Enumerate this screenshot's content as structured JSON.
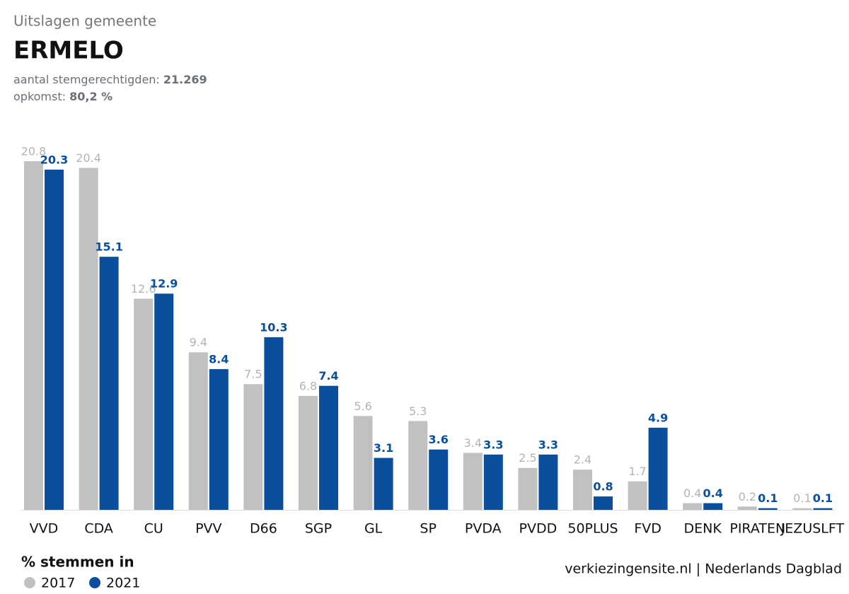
{
  "chart_data": {
    "type": "bar",
    "subtitle": "Uitslagen gemeente",
    "title": "ERMELO",
    "info": [
      {
        "label": "aantal stemgerechtigden:",
        "value": "21.269"
      },
      {
        "label": "opkomst:",
        "value": "80,2 %"
      }
    ],
    "categories": [
      "VVD",
      "CDA",
      "CU",
      "PVV",
      "D66",
      "SGP",
      "GL",
      "SP",
      "PVDA",
      "PVDD",
      "50PLUS",
      "FVD",
      "DENK",
      "PIRATEN",
      "JEZUSLFT"
    ],
    "series": [
      {
        "name": "2017",
        "color": "#c1c1c1",
        "values": [
          20.8,
          20.4,
          12.6,
          9.4,
          7.5,
          6.8,
          5.6,
          5.3,
          3.4,
          2.5,
          2.4,
          1.7,
          0.4,
          0.2,
          0.1
        ]
      },
      {
        "name": "2021",
        "color": "#0b4f9c",
        "values": [
          20.3,
          15.1,
          12.9,
          8.4,
          10.3,
          7.4,
          3.1,
          3.6,
          3.3,
          3.3,
          0.8,
          4.9,
          0.4,
          0.1,
          0.1
        ]
      }
    ],
    "legend_title": "% stemmen in",
    "source": "verkiezingensite.nl | Nederlands Dagblad"
  }
}
